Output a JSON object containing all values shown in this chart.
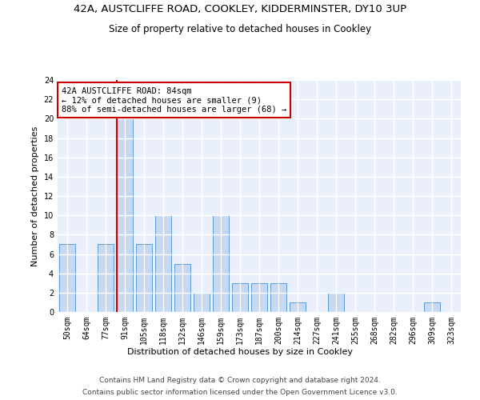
{
  "title1": "42A, AUSTCLIFFE ROAD, COOKLEY, KIDDERMINSTER, DY10 3UP",
  "title2": "Size of property relative to detached houses in Cookley",
  "xlabel": "Distribution of detached houses by size in Cookley",
  "ylabel": "Number of detached properties",
  "categories": [
    "50sqm",
    "64sqm",
    "77sqm",
    "91sqm",
    "105sqm",
    "118sqm",
    "132sqm",
    "146sqm",
    "159sqm",
    "173sqm",
    "187sqm",
    "200sqm",
    "214sqm",
    "227sqm",
    "241sqm",
    "255sqm",
    "268sqm",
    "282sqm",
    "296sqm",
    "309sqm",
    "323sqm"
  ],
  "values": [
    7,
    0,
    7,
    20,
    7,
    10,
    5,
    2,
    10,
    3,
    3,
    3,
    1,
    0,
    2,
    0,
    0,
    0,
    0,
    1,
    0
  ],
  "bar_color": "#c6d9f0",
  "bar_edge_color": "#5b9bd5",
  "vline_color": "#cc0000",
  "vline_x": 2.6,
  "annotation_text": "42A AUSTCLIFFE ROAD: 84sqm\n← 12% of detached houses are smaller (9)\n88% of semi-detached houses are larger (68) →",
  "annotation_box_color": "#ffffff",
  "annotation_box_edge_color": "#cc0000",
  "ylim": [
    0,
    24
  ],
  "yticks": [
    0,
    2,
    4,
    6,
    8,
    10,
    12,
    14,
    16,
    18,
    20,
    22,
    24
  ],
  "footer1": "Contains HM Land Registry data © Crown copyright and database right 2024.",
  "footer2": "Contains public sector information licensed under the Open Government Licence v3.0.",
  "background_color": "#eaf0fb",
  "grid_color": "#ffffff",
  "title1_fontsize": 9.5,
  "title2_fontsize": 8.5,
  "xlabel_fontsize": 8,
  "ylabel_fontsize": 8,
  "tick_fontsize": 7,
  "footer_fontsize": 6.5,
  "annotation_fontsize": 7.5
}
